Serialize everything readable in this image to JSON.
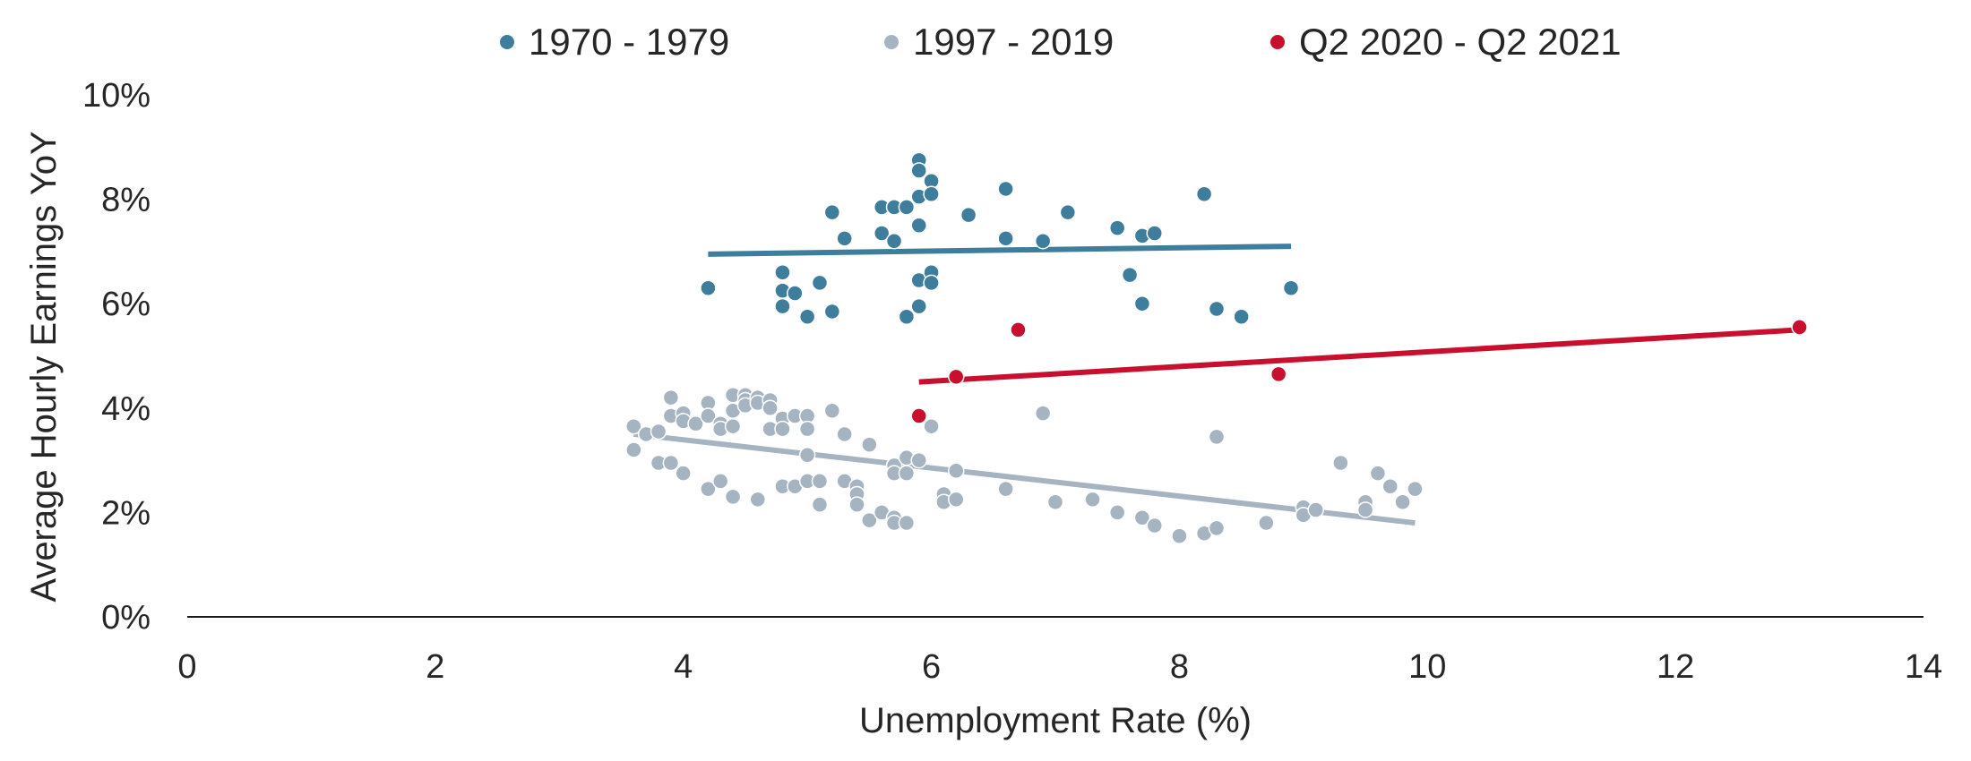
{
  "chart_data": {
    "type": "scatter",
    "title": "",
    "xlabel": "Unemployment Rate (%)",
    "ylabel": "Average Hourly Earnings YoY",
    "xlim": [
      0,
      14
    ],
    "ylim": [
      0,
      10
    ],
    "x_ticks": [
      "0",
      "2",
      "4",
      "6",
      "8",
      "10",
      "12",
      "14"
    ],
    "y_ticks": [
      "0%",
      "2%",
      "4%",
      "6%",
      "8%",
      "10%"
    ],
    "grid": false,
    "legend_position": "top",
    "series": [
      {
        "name": "1970 - 1979",
        "color": "#3e7e9c",
        "points": [
          [
            4.2,
            6.3
          ],
          [
            4.8,
            6.6
          ],
          [
            4.8,
            6.25
          ],
          [
            4.8,
            5.95
          ],
          [
            4.9,
            6.2
          ],
          [
            5.0,
            5.75
          ],
          [
            5.1,
            6.4
          ],
          [
            5.2,
            7.75
          ],
          [
            5.2,
            5.85
          ],
          [
            5.3,
            7.25
          ],
          [
            5.6,
            7.85
          ],
          [
            5.6,
            7.35
          ],
          [
            5.7,
            7.85
          ],
          [
            5.7,
            7.2
          ],
          [
            5.8,
            7.85
          ],
          [
            5.8,
            5.75
          ],
          [
            5.9,
            8.75
          ],
          [
            5.9,
            8.55
          ],
          [
            5.9,
            8.05
          ],
          [
            5.9,
            7.5
          ],
          [
            5.9,
            6.45
          ],
          [
            5.9,
            5.95
          ],
          [
            6.0,
            8.35
          ],
          [
            6.0,
            8.1
          ],
          [
            6.0,
            6.6
          ],
          [
            6.0,
            6.4
          ],
          [
            6.3,
            7.7
          ],
          [
            6.6,
            8.2
          ],
          [
            6.6,
            7.25
          ],
          [
            6.9,
            7.2
          ],
          [
            7.1,
            7.75
          ],
          [
            7.5,
            7.45
          ],
          [
            7.6,
            6.55
          ],
          [
            7.7,
            7.3
          ],
          [
            7.7,
            6.0
          ],
          [
            7.8,
            7.35
          ],
          [
            8.2,
            8.1
          ],
          [
            8.3,
            5.9
          ],
          [
            8.5,
            5.75
          ],
          [
            8.9,
            6.3
          ]
        ],
        "trend": [
          [
            4.2,
            6.95
          ],
          [
            8.9,
            7.1
          ]
        ]
      },
      {
        "name": "1997 - 2019",
        "color": "#a5b4c0",
        "points": [
          [
            3.6,
            3.65
          ],
          [
            3.6,
            3.2
          ],
          [
            3.7,
            3.5
          ],
          [
            3.8,
            3.55
          ],
          [
            3.8,
            2.95
          ],
          [
            3.9,
            4.2
          ],
          [
            3.9,
            3.85
          ],
          [
            3.9,
            2.95
          ],
          [
            4.0,
            3.9
          ],
          [
            4.0,
            3.75
          ],
          [
            4.0,
            2.75
          ],
          [
            4.1,
            3.7
          ],
          [
            4.2,
            4.1
          ],
          [
            4.2,
            3.85
          ],
          [
            4.2,
            2.45
          ],
          [
            4.3,
            3.7
          ],
          [
            4.3,
            3.6
          ],
          [
            4.3,
            2.6
          ],
          [
            4.4,
            4.25
          ],
          [
            4.4,
            3.95
          ],
          [
            4.4,
            3.65
          ],
          [
            4.4,
            2.3
          ],
          [
            4.5,
            4.25
          ],
          [
            4.5,
            4.15
          ],
          [
            4.5,
            4.05
          ],
          [
            4.6,
            4.2
          ],
          [
            4.6,
            4.1
          ],
          [
            4.6,
            2.25
          ],
          [
            4.7,
            4.15
          ],
          [
            4.7,
            4.0
          ],
          [
            4.7,
            3.6
          ],
          [
            4.8,
            3.8
          ],
          [
            4.8,
            3.6
          ],
          [
            4.8,
            2.5
          ],
          [
            4.9,
            3.85
          ],
          [
            4.9,
            2.5
          ],
          [
            5.0,
            3.85
          ],
          [
            5.0,
            3.6
          ],
          [
            5.0,
            3.1
          ],
          [
            5.0,
            2.6
          ],
          [
            5.1,
            2.6
          ],
          [
            5.1,
            2.15
          ],
          [
            5.2,
            3.95
          ],
          [
            5.3,
            3.5
          ],
          [
            5.3,
            2.6
          ],
          [
            5.4,
            2.5
          ],
          [
            5.4,
            2.35
          ],
          [
            5.4,
            2.15
          ],
          [
            5.5,
            3.3
          ],
          [
            5.5,
            1.85
          ],
          [
            5.6,
            2.0
          ],
          [
            5.7,
            2.9
          ],
          [
            5.7,
            2.75
          ],
          [
            5.7,
            1.9
          ],
          [
            5.7,
            1.8
          ],
          [
            5.8,
            3.05
          ],
          [
            5.8,
            2.75
          ],
          [
            5.8,
            1.8
          ],
          [
            5.9,
            3.0
          ],
          [
            6.0,
            3.65
          ],
          [
            6.1,
            2.35
          ],
          [
            6.1,
            2.2
          ],
          [
            6.2,
            2.8
          ],
          [
            6.2,
            2.25
          ],
          [
            6.6,
            2.45
          ],
          [
            6.9,
            3.9
          ],
          [
            7.0,
            2.2
          ],
          [
            7.3,
            2.25
          ],
          [
            7.5,
            2.0
          ],
          [
            7.7,
            1.9
          ],
          [
            7.8,
            1.75
          ],
          [
            8.0,
            1.55
          ],
          [
            8.2,
            1.6
          ],
          [
            8.3,
            3.45
          ],
          [
            8.3,
            1.7
          ],
          [
            8.7,
            1.8
          ],
          [
            9.0,
            2.1
          ],
          [
            9.0,
            1.95
          ],
          [
            9.1,
            2.05
          ],
          [
            9.3,
            2.95
          ],
          [
            9.5,
            2.2
          ],
          [
            9.5,
            2.05
          ],
          [
            9.6,
            2.75
          ],
          [
            9.7,
            2.5
          ],
          [
            9.8,
            2.2
          ],
          [
            9.9,
            2.45
          ]
        ],
        "trend": [
          [
            3.6,
            3.5
          ],
          [
            9.9,
            1.8
          ]
        ]
      },
      {
        "name": "Q2 2020 - Q2 2021",
        "color": "#c8102e",
        "points": [
          [
            5.9,
            3.85
          ],
          [
            6.2,
            4.6
          ],
          [
            6.7,
            5.5
          ],
          [
            8.8,
            4.65
          ],
          [
            13.0,
            5.55
          ]
        ],
        "trend": [
          [
            5.9,
            4.5
          ],
          [
            13.0,
            5.5
          ]
        ]
      }
    ]
  }
}
